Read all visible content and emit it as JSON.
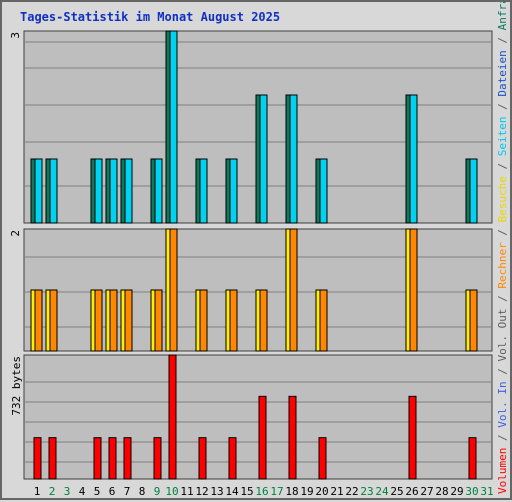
{
  "title": "Tages-Statistik im Monat August 2025",
  "chart_data": [
    {
      "type": "bar",
      "panel": "top",
      "ymax_label": "3",
      "ylim": [
        0,
        3
      ],
      "categories": [
        "1",
        "2",
        "3",
        "4",
        "5",
        "6",
        "7",
        "8",
        "9",
        "10",
        "11",
        "12",
        "13",
        "14",
        "15",
        "16",
        "17",
        "18",
        "19",
        "20",
        "21",
        "22",
        "23",
        "24",
        "25",
        "26",
        "27",
        "28",
        "29",
        "30",
        "31"
      ],
      "series": [
        {
          "name": "Anfragen",
          "color": "#0e7a5c",
          "values": [
            1,
            1,
            0,
            0,
            1,
            1,
            1,
            0,
            1,
            3,
            0,
            1,
            0,
            1,
            0,
            2,
            0,
            2,
            0,
            1,
            0,
            0,
            0,
            0,
            0,
            2,
            0,
            0,
            0,
            1,
            0
          ]
        },
        {
          "name": "Dateien",
          "color": "#00d2f0",
          "values": [
            1,
            1,
            0,
            0,
            1,
            1,
            1,
            0,
            1,
            3,
            0,
            1,
            0,
            1,
            0,
            2,
            0,
            2,
            0,
            1,
            0,
            0,
            0,
            0,
            0,
            2,
            0,
            0,
            0,
            1,
            0
          ]
        }
      ]
    },
    {
      "type": "bar",
      "panel": "middle",
      "ymax_label": "2",
      "ylim": [
        0,
        2
      ],
      "categories": [
        "1",
        "2",
        "3",
        "4",
        "5",
        "6",
        "7",
        "8",
        "9",
        "10",
        "11",
        "12",
        "13",
        "14",
        "15",
        "16",
        "17",
        "18",
        "19",
        "20",
        "21",
        "22",
        "23",
        "24",
        "25",
        "26",
        "27",
        "28",
        "29",
        "30",
        "31"
      ],
      "series": [
        {
          "name": "Besuche",
          "color": "#ffee00",
          "values": [
            1,
            1,
            0,
            0,
            1,
            1,
            1,
            0,
            1,
            2,
            0,
            1,
            0,
            1,
            0,
            1,
            0,
            2,
            0,
            1,
            0,
            0,
            0,
            0,
            0,
            2,
            0,
            0,
            0,
            1,
            0
          ]
        },
        {
          "name": "Rechner",
          "color": "#ff8800",
          "values": [
            1,
            1,
            0,
            0,
            1,
            1,
            1,
            0,
            1,
            2,
            0,
            1,
            0,
            1,
            0,
            1,
            0,
            2,
            0,
            1,
            0,
            0,
            0,
            0,
            0,
            2,
            0,
            0,
            0,
            1,
            0
          ]
        }
      ]
    },
    {
      "type": "bar",
      "panel": "bottom",
      "ymax_label": "732 bytes",
      "ylim": [
        0,
        732
      ],
      "categories": [
        "1",
        "2",
        "3",
        "4",
        "5",
        "6",
        "7",
        "8",
        "9",
        "10",
        "11",
        "12",
        "13",
        "14",
        "15",
        "16",
        "17",
        "18",
        "19",
        "20",
        "21",
        "22",
        "23",
        "24",
        "25",
        "26",
        "27",
        "28",
        "29",
        "30",
        "31"
      ],
      "series": [
        {
          "name": "Volumen",
          "color": "#ff0000",
          "values": [
            244,
            244,
            0,
            0,
            244,
            244,
            244,
            0,
            244,
            732,
            0,
            244,
            0,
            244,
            0,
            488,
            0,
            488,
            0,
            244,
            0,
            0,
            0,
            0,
            0,
            488,
            0,
            0,
            0,
            244,
            0
          ]
        }
      ]
    }
  ],
  "weekend_days": [
    "2",
    "3",
    "9",
    "10",
    "16",
    "17",
    "23",
    "24",
    "30",
    "31"
  ],
  "colors": {
    "weekday_label": "#000000",
    "weekend_label": "#008040",
    "plot_bg": "#bebebe",
    "grid": "#808080",
    "vol_in": "#4060e0",
    "vol_out": "#606060"
  },
  "side_legend": [
    {
      "text": "Volumen",
      "color": "#ff0000"
    },
    {
      "text": " / ",
      "color": "#606060"
    },
    {
      "text": "Vol. In",
      "color": "#4060e0"
    },
    {
      "text": " / ",
      "color": "#606060"
    },
    {
      "text": "Vol. Out",
      "color": "#606060"
    },
    {
      "text": " / ",
      "color": "#606060"
    },
    {
      "text": "Rechner",
      "color": "#ff8800"
    },
    {
      "text": " / ",
      "color": "#606060"
    },
    {
      "text": "Besuche",
      "color": "#e8d800"
    },
    {
      "text": " / ",
      "color": "#606060"
    },
    {
      "text": "Seiten",
      "color": "#00c8e8"
    },
    {
      "text": " / ",
      "color": "#606060"
    },
    {
      "text": "Dateien",
      "color": "#1a50c8"
    },
    {
      "text": " / ",
      "color": "#606060"
    },
    {
      "text": "Anfragen",
      "color": "#0e7a5c"
    }
  ]
}
